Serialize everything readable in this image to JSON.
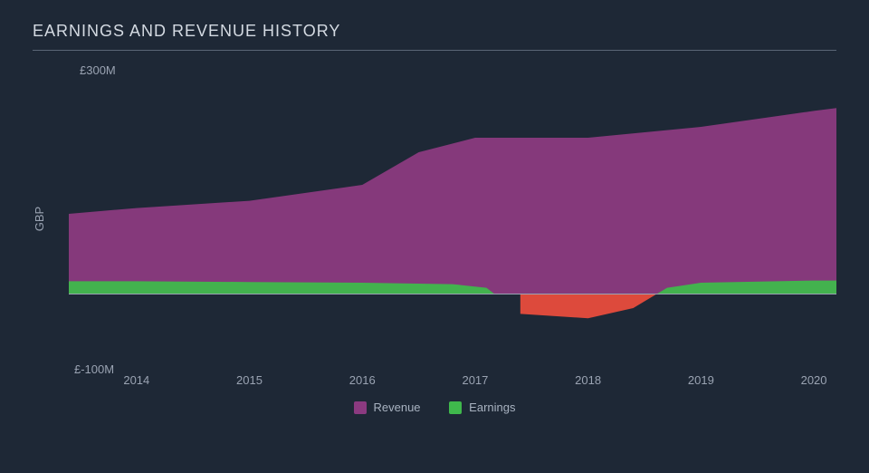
{
  "chart": {
    "type": "area",
    "title": "EARNINGS AND REVENUE HISTORY",
    "background_color": "#1e2836",
    "text_color": "#a8b2c0",
    "title_color": "#d4dae2",
    "title_fontsize": 18,
    "label_fontsize": 13,
    "axis_line_color": "#9aa3b2",
    "y_axis": {
      "label": "GBP",
      "min": -100,
      "max": 300,
      "top_tick_label": "£300M",
      "bottom_tick_label": "£-100M",
      "zero": 0
    },
    "x_axis": {
      "min": 2013.4,
      "max": 2020.2,
      "ticks": [
        2014,
        2015,
        2016,
        2017,
        2018,
        2019,
        2020
      ],
      "tick_labels": [
        "2014",
        "2015",
        "2016",
        "2017",
        "2018",
        "2019",
        "2020"
      ]
    },
    "series": [
      {
        "name": "Revenue",
        "color": "#8b3a80",
        "fill_opacity": 0.95,
        "x": [
          2013.4,
          2014,
          2015,
          2016,
          2016.5,
          2017,
          2018,
          2019,
          2020,
          2020.2
        ],
        "y": [
          110,
          118,
          128,
          150,
          195,
          215,
          215,
          230,
          252,
          256
        ]
      },
      {
        "name": "Earnings",
        "color_positive": "#3fb84c",
        "color_negative": "#e84c3d",
        "fill_opacity": 0.95,
        "x": [
          2013.4,
          2014,
          2015,
          2016,
          2016.8,
          2017.1,
          2017.4,
          2018,
          2018.4,
          2018.7,
          2019,
          2020,
          2020.2
        ],
        "y": [
          17,
          17,
          16,
          15,
          13,
          8,
          -28,
          -34,
          -20,
          8,
          15,
          18,
          18
        ]
      }
    ],
    "legend": {
      "items": [
        {
          "label": "Revenue",
          "color": "#8b3a80"
        },
        {
          "label": "Earnings",
          "color": "#3fb84c"
        }
      ]
    }
  }
}
